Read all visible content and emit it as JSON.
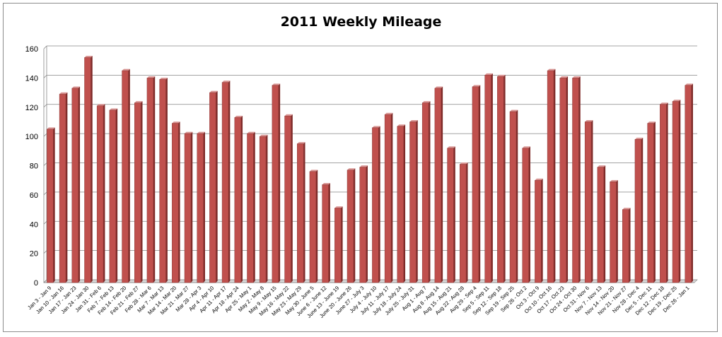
{
  "chart_data": {
    "type": "bar",
    "title": "2011 Weekly Mileage",
    "xlabel": "",
    "ylabel": "",
    "ylim": [
      0,
      160
    ],
    "yticks": [
      "0",
      "20",
      "40",
      "60",
      "80",
      "100",
      "120",
      "140",
      "160"
    ],
    "grid": true,
    "legend": "none",
    "bar_color": "#c0504d",
    "categories": [
      "Jan 3 - Jan 9",
      "Jan 10 - Jan 16",
      "Jan 17 - Jan 23",
      "Jan 24 - Jan 30",
      "Jan 31 - Feb 6",
      "Feb 7 - Feb 13",
      "Feb 14 - Feb 20",
      "Feb 21 - Feb 27",
      "Feb 28 - Mar 6",
      "Mar 7 - Mar 13",
      "Mar 14 - Mar 20",
      "Mar 21 - Mar 27",
      "Mar 28 - Apr 3",
      "Apr 4 - Apr 10",
      "Apr 11 - Apr 17",
      "Apr 18 - Apr 24",
      "Apr 25 - May 1",
      "May 2 - May 8",
      "May 9 - May 15",
      "May 16 - May 22",
      "May 23 - May 29",
      "May 30 - June 5",
      "June 6 - June 12",
      "June 13 - June 19",
      "June 20 - June 26",
      "June 27 - July 3",
      "July 4 - July 10",
      "July 11 - July 17",
      "July 18 - July 24",
      "July 25 - July 31",
      "Aug 1 - Aug 7",
      "Aug 8 - Aug 14",
      "Aug 15 - Aug 21",
      "Aug 22 - Aug 28",
      "Aug 29 - Sep 4",
      "Sep 5 - Sep 11",
      "Sep 12 - Sep 18",
      "Sep 19 - Sep 25",
      "Sep 26 - Oct 2",
      "Oct 3 - Oct 9",
      "Oct 10 - Oct 16",
      "Oct 17 - Oct 23",
      "Oct 24 - Oct 30",
      "Oct 31 - Nov 6",
      "Nov 7 - Nov 13",
      "Nov 14 - Nov 20",
      "Nov 21 - Nov 27",
      "Nov 28 - Dec 4",
      "Dec 5 - Dec 11",
      "Dec 12 - Dec 18",
      "Dec 19 - Dec 25",
      "Dec 26 - Jan 1"
    ],
    "values": [
      105,
      129,
      133,
      154,
      121,
      118,
      145,
      123,
      140,
      139,
      109,
      102,
      102,
      130,
      137,
      113,
      102,
      100,
      135,
      114,
      95,
      76,
      67,
      51,
      77,
      79,
      106,
      115,
      107,
      110,
      123,
      133,
      92,
      81,
      134,
      142,
      141,
      117,
      92,
      70,
      145,
      140,
      140,
      110,
      79,
      69,
      50,
      98,
      109,
      122,
      124,
      135
    ]
  }
}
